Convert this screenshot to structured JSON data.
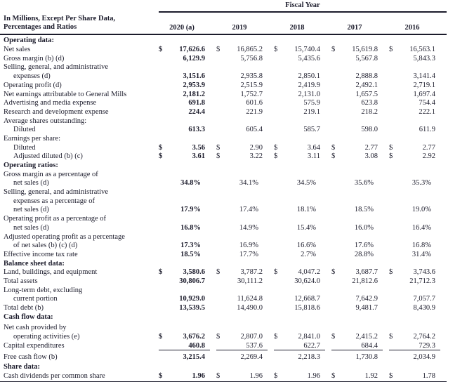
{
  "colors": {
    "ink": "#1b1b2b"
  },
  "header": {
    "fiscal_year_label": "Fiscal Year",
    "row_label_line1": "In Millions, Except Per Share Data,",
    "row_label_line2": "Percentages and Ratios",
    "years": [
      "2020 (a)",
      "2019",
      "2018",
      "2017",
      "2016"
    ]
  },
  "rows": [
    {
      "label": "Operating data:",
      "bold": true
    },
    {
      "label": "Net sales",
      "dollar": true,
      "values": [
        "17,626.6",
        "16,865.2",
        "15,740.4",
        "15,619.8",
        "16,563.1"
      ]
    },
    {
      "label": "Gross margin (b) (d)",
      "values": [
        "6,129.9",
        "5,756.8",
        "5,435.6",
        "5,567.8",
        "5,843.3"
      ]
    },
    {
      "label": "Selling, general, and administrative"
    },
    {
      "label": "expenses (d)",
      "indent": 1,
      "values": [
        "3,151.6",
        "2,935.8",
        "2,850.1",
        "2,888.8",
        "3,141.4"
      ]
    },
    {
      "label": "Operating profit (d)",
      "values": [
        "2,953.9",
        "2,515.9",
        "2,419.9",
        "2,492.1",
        "2,719.1"
      ]
    },
    {
      "label": "Net earnings attributable to General Mills",
      "values": [
        "2,181.2",
        "1,752.7",
        "2,131.0",
        "1,657.5",
        "1,697.4"
      ]
    },
    {
      "label": "Advertising and media expense",
      "values": [
        "691.8",
        "601.6",
        "575.9",
        "623.8",
        "754.4"
      ]
    },
    {
      "label": "Research and development expense",
      "values": [
        "224.4",
        "221.9",
        "219.1",
        "218.2",
        "222.1"
      ]
    },
    {
      "label": "Average shares outstanding:"
    },
    {
      "label": "Diluted",
      "indent": 1,
      "values": [
        "613.3",
        "605.4",
        "585.7",
        "598.0",
        "611.9"
      ]
    },
    {
      "label": "Earnings per share:"
    },
    {
      "label": "Diluted",
      "indent": 1,
      "dollar": true,
      "values": [
        "3.56",
        "2.90",
        "3.64",
        "2.77",
        "2.77"
      ]
    },
    {
      "label": "Adjusted diluted (b) (c)",
      "indent": 1,
      "dollar": true,
      "values": [
        "3.61",
        "3.22",
        "3.11",
        "3.08",
        "2.92"
      ]
    },
    {
      "label": "Operating ratios:",
      "bold": true
    },
    {
      "label": "Gross margin as a percentage of"
    },
    {
      "label": "net sales (d)",
      "indent": 1,
      "values": [
        "34.8%",
        "34.1%",
        "34.5%",
        "35.6%",
        "35.3%"
      ]
    },
    {
      "label": "Selling, general, and administrative"
    },
    {
      "label": "expenses as a percentage of",
      "indent": 1
    },
    {
      "label": "net sales (d)",
      "indent": 1,
      "values": [
        "17.9%",
        "17.4%",
        "18.1%",
        "18.5%",
        "19.0%"
      ]
    },
    {
      "label": "Operating profit as a percentage of"
    },
    {
      "label": "net sales (d)",
      "indent": 1,
      "values": [
        "16.8%",
        "14.9%",
        "15.4%",
        "16.0%",
        "16.4%"
      ]
    },
    {
      "label": "Adjusted operating profit as a percentage"
    },
    {
      "label": "of net sales (b) (c) (d)",
      "indent": 1,
      "values": [
        "17.3%",
        "16.9%",
        "16.6%",
        "17.6%",
        "16.8%"
      ]
    },
    {
      "label": "Effective income tax rate",
      "values": [
        "18.5%",
        "17.7%",
        "2.7%",
        "28.8%",
        "31.4%"
      ]
    },
    {
      "label": "Balance sheet data:",
      "bold": true
    },
    {
      "label": "Land, buildings, and equipment",
      "dollar": true,
      "values": [
        "3,580.6",
        "3,787.2",
        "4,047.2",
        "3,687.7",
        "3,743.6"
      ]
    },
    {
      "label": "Total assets",
      "values": [
        "30,806.7",
        "30,111.2",
        "30,624.0",
        "21,812.6",
        "21,712.3"
      ]
    },
    {
      "label": "Long-term debt, excluding"
    },
    {
      "label": "current portion",
      "indent": 1,
      "values": [
        "10,929.0",
        "11,624.8",
        "12,668.7",
        "7,642.9",
        "7,057.7"
      ]
    },
    {
      "label": "Total debt (b)",
      "values": [
        "13,539.5",
        "14,490.0",
        "15,818.6",
        "9,481.7",
        "8,430.9"
      ]
    },
    {
      "label": "Cash flow data:",
      "bold": true
    },
    {
      "label": "Net cash provided by",
      "gap": 3
    },
    {
      "label": "operating activities (e)",
      "indent": 1,
      "dollar": true,
      "values": [
        "3,676.2",
        "2,807.0",
        "2,841.0",
        "2,415.2",
        "2,764.2"
      ]
    },
    {
      "label": "Capital expenditures",
      "values": [
        "460.8",
        "537.6",
        "622.7",
        "684.4",
        "729.3"
      ],
      "rule_below": true
    },
    {
      "label": "Free cash flow (b)",
      "values": [
        "3,215.4",
        "2,269.4",
        "2,218.3",
        "1,730.8",
        "2,034.9"
      ],
      "gap": 4
    },
    {
      "label": "Share data:",
      "bold": true,
      "gap": 1
    },
    {
      "label": "Cash dividends per common share",
      "dollar": true,
      "values": [
        "1.96",
        "1.96",
        "1.96",
        "1.92",
        "1.78"
      ]
    }
  ]
}
